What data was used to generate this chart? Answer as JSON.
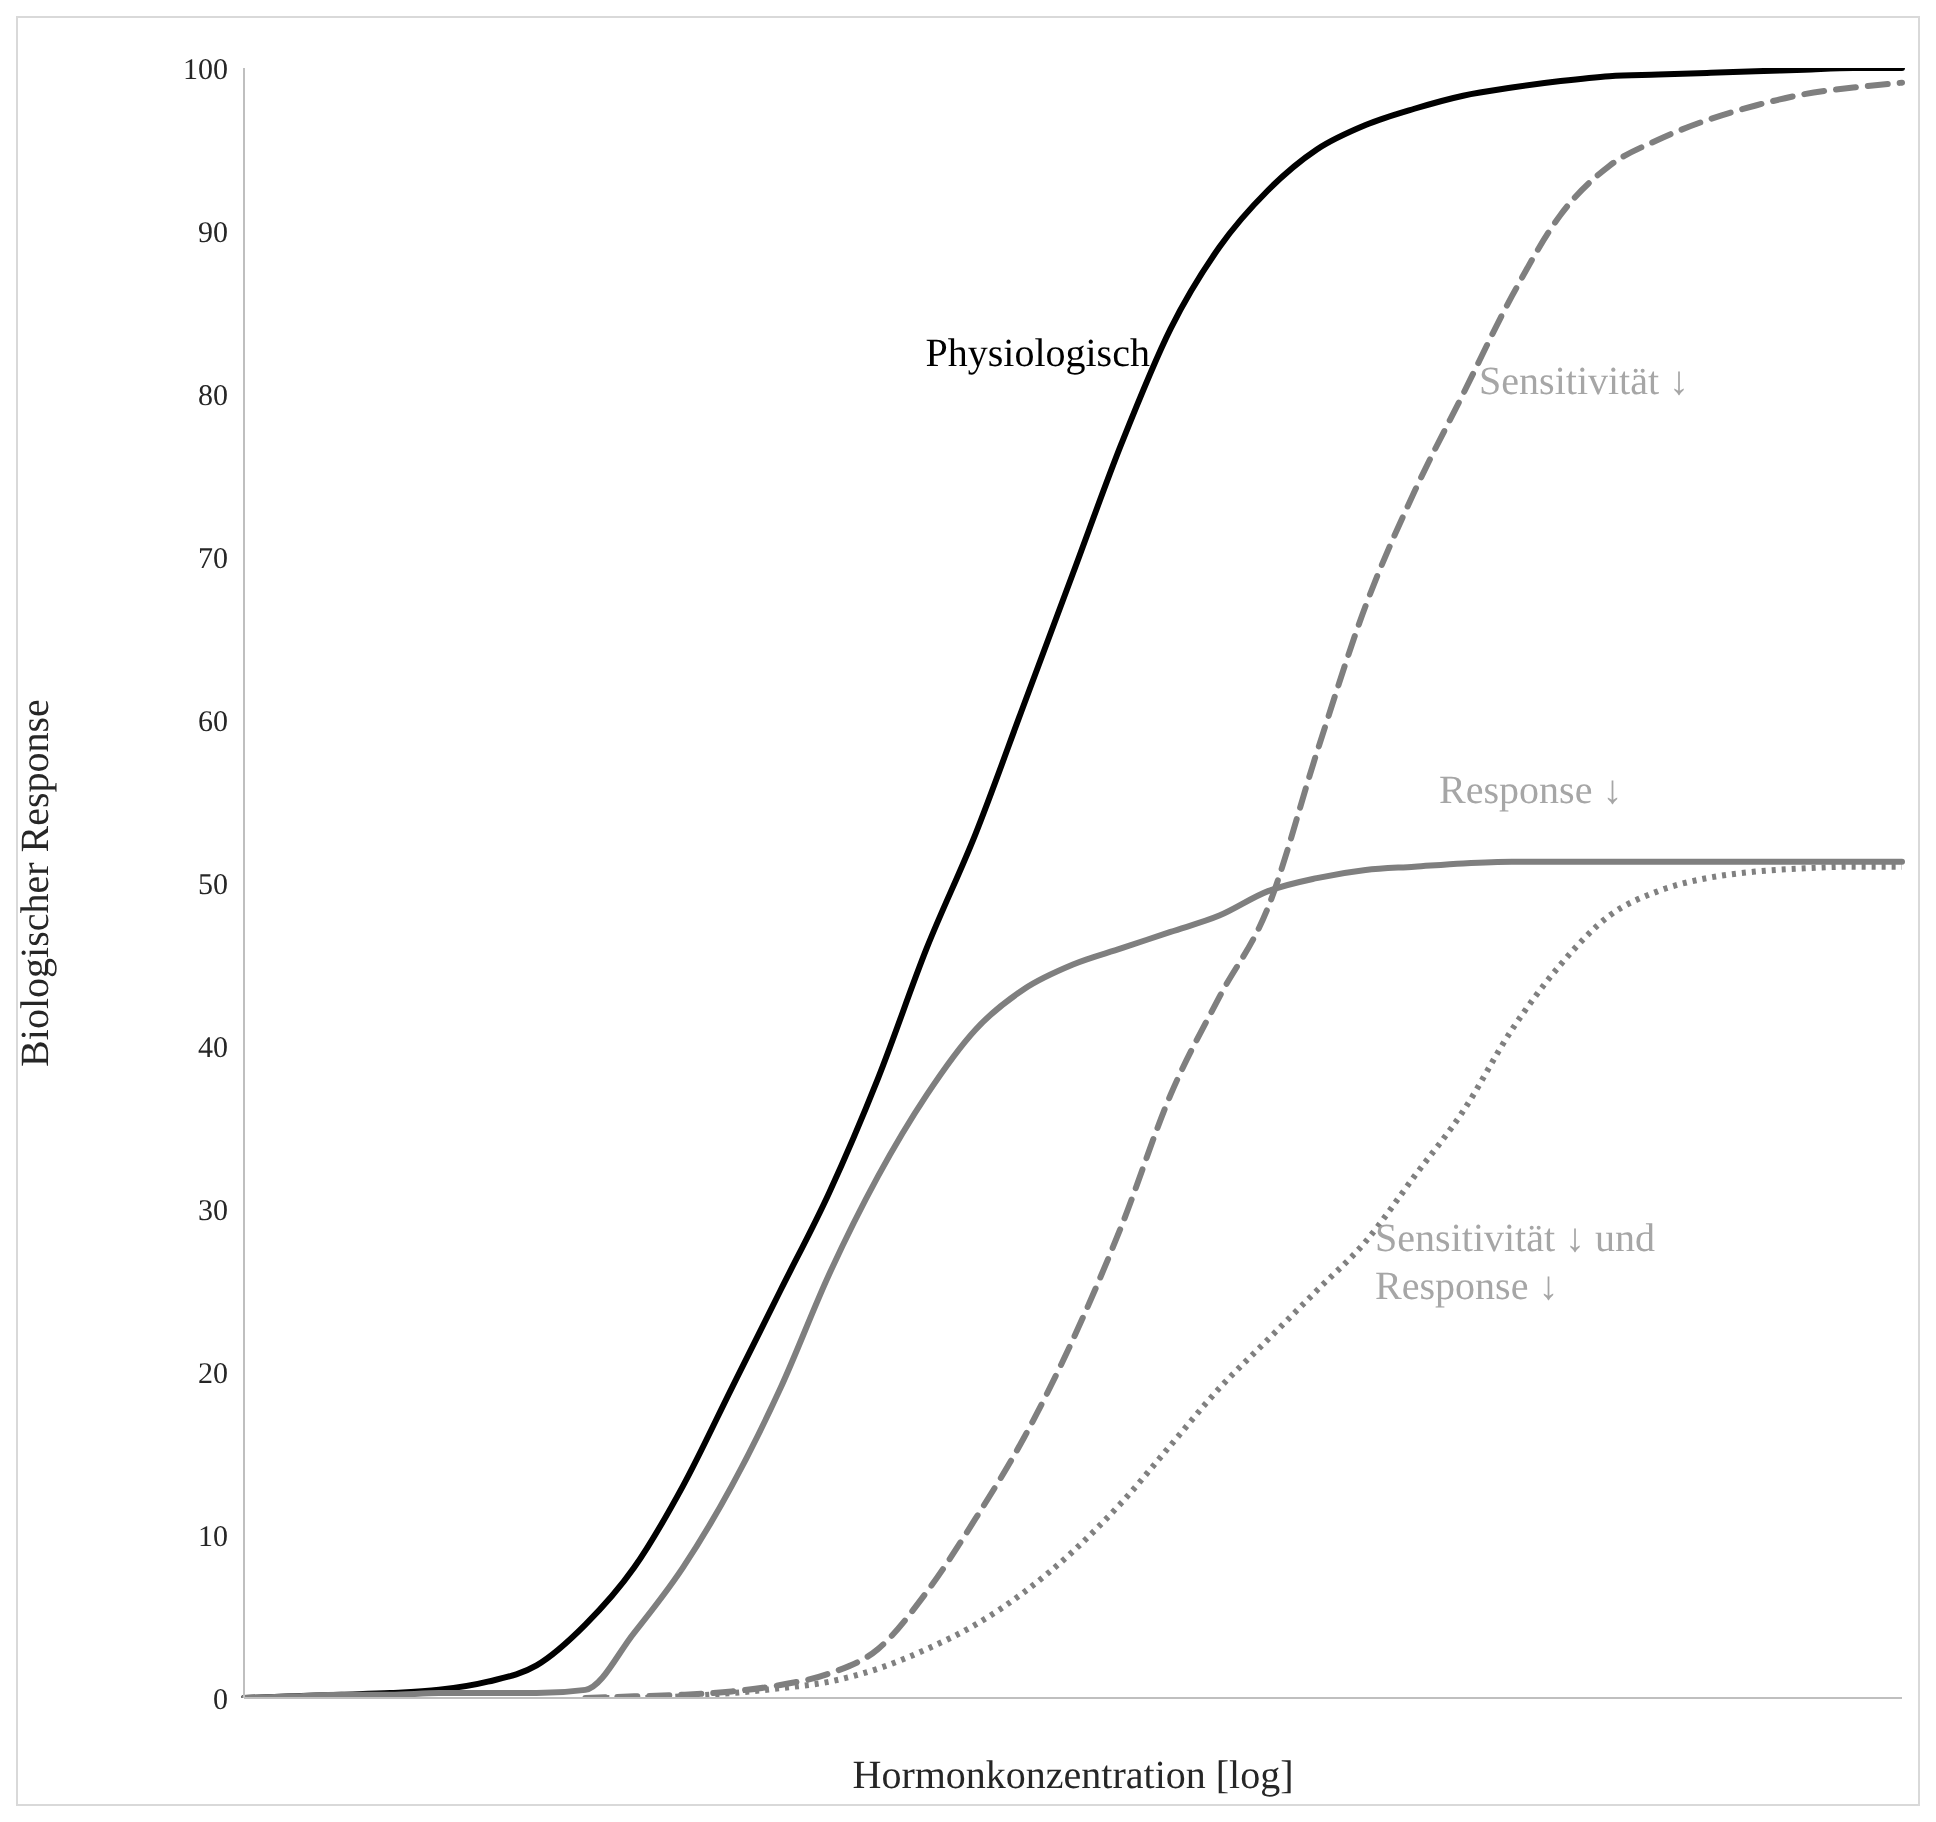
{
  "chart_data": {
    "type": "line",
    "xlabel": "Hormonkonzentration [log]",
    "ylabel": "Biologischer Response",
    "categories": [
      null,
      null,
      null,
      null,
      null,
      null,
      null,
      null,
      null,
      null,
      null,
      null,
      null,
      null,
      null,
      null,
      null,
      null,
      null,
      null,
      null,
      null,
      null,
      null,
      null,
      null,
      null,
      null,
      null,
      null,
      null,
      null,
      null,
      null,
      null
    ],
    "series": [
      {
        "name": "Physiologisch",
        "color": "#000000",
        "line_style": "solid",
        "values": [
          0,
          0.1,
          0.2,
          0.3,
          0.5,
          1,
          2,
          4.5,
          8,
          13,
          19,
          25,
          31,
          38,
          46,
          53,
          61,
          69,
          77,
          84,
          89,
          92.5,
          95,
          96.5,
          97.5,
          98.3,
          98.8,
          99.2,
          99.5,
          99.6,
          99.7,
          99.8,
          99.9,
          100,
          100
        ]
      },
      {
        "name": "Sensitivität ↓",
        "color": "#7f7f7f",
        "line_style": "dashed",
        "values": [
          null,
          null,
          null,
          null,
          null,
          null,
          null,
          0,
          0.1,
          0.2,
          0.4,
          0.8,
          1.5,
          3,
          6.5,
          11,
          16,
          22,
          29,
          37,
          43,
          48.5,
          58,
          67,
          74,
          80,
          86,
          91,
          94,
          95.6,
          96.8,
          97.7,
          98.4,
          98.8,
          99.1
        ]
      },
      {
        "name": "Response ↓",
        "color": "#7f7f7f",
        "line_style": "solid",
        "values": [
          0,
          0.1,
          0.2,
          0.2,
          0.3,
          0.3,
          0.3,
          0.5,
          4,
          8,
          13,
          19,
          26,
          32,
          37,
          41,
          43.5,
          45,
          46,
          47,
          48,
          49.5,
          50.3,
          50.8,
          51,
          51.2,
          51.3,
          51.3,
          51.3,
          51.3,
          51.3,
          51.3,
          51.3,
          51.3,
          51.3
        ]
      },
      {
        "name": "Sensitivität ↓ und Response ↓",
        "color": "#808080",
        "line_style": "dotted",
        "values": [
          null,
          null,
          null,
          null,
          null,
          null,
          null,
          0,
          0,
          0.1,
          0.3,
          0.6,
          1,
          1.8,
          3,
          4.5,
          6.5,
          9,
          12,
          15.5,
          19,
          22,
          25,
          28,
          32,
          36,
          41,
          45,
          48,
          49.5,
          50.3,
          50.7,
          50.9,
          51,
          51
        ]
      }
    ],
    "ylim": [
      0,
      100
    ],
    "yticks": [
      0,
      10,
      20,
      30,
      40,
      50,
      60,
      70,
      80,
      90,
      100
    ],
    "marker": "none"
  }
}
